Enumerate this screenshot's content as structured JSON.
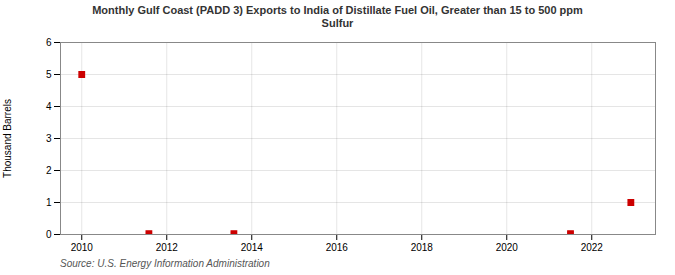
{
  "chart_data": {
    "type": "scatter",
    "title": "Monthly Gulf Coast (PADD 3) Exports to India of Distillate Fuel Oil, Greater than 15 to 500 ppm\nSulfur",
    "ylabel": "Thousand Barrels",
    "source": "Source: U.S. Energy Information Administration",
    "x": [
      2010.0,
      2011.58,
      2013.58,
      2021.5,
      2022.92
    ],
    "values": [
      5.0,
      0.03,
      0.03,
      0.03,
      1.0
    ],
    "color": "#cc0000",
    "marker": "square",
    "xlim": [
      2009.5,
      2023.5
    ],
    "xticks": [
      2010,
      2012,
      2014,
      2016,
      2018,
      2020,
      2022
    ],
    "ylim": [
      0,
      6
    ],
    "yticks": [
      0,
      1,
      2,
      3,
      4,
      5,
      6
    ],
    "grid": true
  }
}
